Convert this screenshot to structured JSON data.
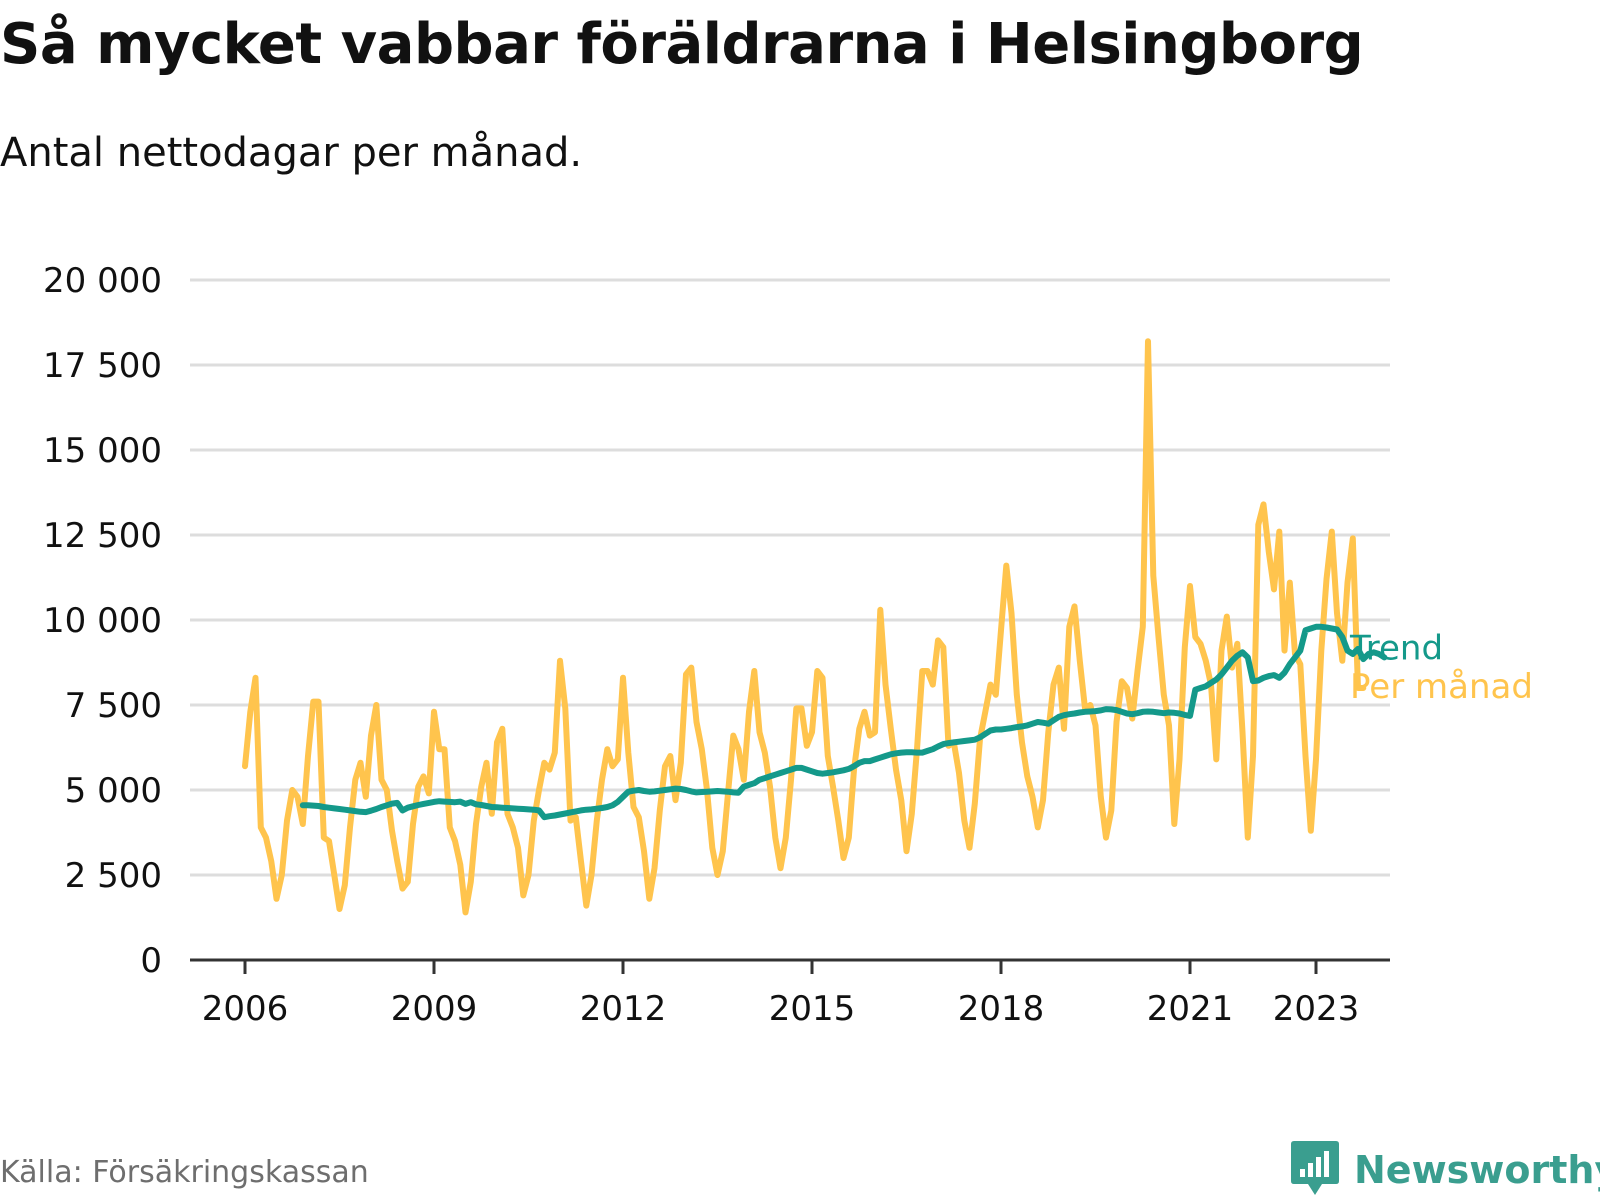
{
  "header": {
    "title": "Så mycket vabbar föräldrarna i Helsingborg",
    "subtitle": "Antal nettodagar per månad."
  },
  "footer": {
    "source": "Källa: Försäkringskassan",
    "brand": "Newsworthy"
  },
  "colors": {
    "monthly": "#ffc44d",
    "trend": "#14998a",
    "grid": "#dddddd",
    "axis": "#333333",
    "text": "#111111",
    "source": "#6e6e6e",
    "brand": "#3a9e8f"
  },
  "icons": {
    "brand": "bar-chart-speech-bubble-icon"
  },
  "chart_data": {
    "type": "line",
    "title": "Så mycket vabbar föräldrarna i Helsingborg",
    "subtitle": "Antal nettodagar per månad.",
    "xlabel": "",
    "ylabel": "",
    "ylim": [
      0,
      20000
    ],
    "yticks": [
      0,
      2500,
      5000,
      7500,
      10000,
      12500,
      15000,
      17500,
      20000
    ],
    "ytick_labels": [
      "0",
      "2 500",
      "5 000",
      "7 500",
      "10 000",
      "12 500",
      "15 000",
      "17 500",
      "20 000"
    ],
    "xticks": [
      "2006",
      "2009",
      "2012",
      "2015",
      "2018",
      "2021",
      "2023"
    ],
    "grid": "horizontal",
    "legend": "direct labels at line ends, right",
    "series": [
      {
        "name": "Per månad",
        "values": [
          5700,
          7300,
          8300,
          3900,
          3600,
          2900,
          1800,
          2500,
          4100,
          5000,
          4800,
          4000,
          6000,
          7600,
          7600,
          3600,
          3500,
          2500,
          1500,
          2200,
          3900,
          5300,
          5800,
          4800,
          6600,
          7500,
          5300,
          5000,
          3800,
          2900,
          2100,
          2300,
          4000,
          5100,
          5400,
          4900,
          7300,
          6200,
          6200,
          3900,
          3500,
          2800,
          1400,
          2300,
          4000,
          5100,
          5800,
          4300,
          6400,
          6800,
          4300,
          3900,
          3300,
          1900,
          2500,
          4100,
          5000,
          5800,
          5600,
          6100,
          8800,
          7400,
          4100,
          4200,
          2900,
          1600,
          2500,
          4100,
          5300,
          6200,
          5700,
          5900,
          8300,
          6100,
          4500,
          4200,
          3200,
          1800,
          2700,
          4400,
          5700,
          6000,
          4700,
          5800,
          8400,
          8600,
          7000,
          6200,
          5000,
          3300,
          2500,
          3200,
          4900,
          6600,
          6200,
          5300,
          7300,
          8500,
          6700,
          6100,
          5100,
          3600,
          2700,
          3600,
          5300,
          7400,
          7400,
          6300,
          6700,
          8500,
          8300,
          6000,
          5100,
          4100,
          3000,
          3600,
          5600,
          6800,
          7300,
          6600,
          6700,
          10300,
          8100,
          6800,
          5600,
          4700,
          3200,
          4300,
          6200,
          8500,
          8500,
          8100,
          9400,
          9200,
          6300,
          6400,
          5500,
          4100,
          3300,
          4600,
          6500,
          7300,
          8100,
          7800,
          9700,
          11600,
          10200,
          7800,
          6400,
          5400,
          4800,
          3900,
          4700,
          6700,
          8100,
          8600,
          6800,
          9800,
          10400,
          8800,
          7400,
          7500,
          6900,
          4800,
          3600,
          4400,
          7000,
          8200,
          8000,
          7100,
          8500,
          9800,
          18200,
          11300,
          9500,
          7800,
          6900,
          4000,
          5900,
          9200,
          11000,
          9500,
          9300,
          8800,
          8100,
          5900,
          9100,
          10100,
          8600,
          9300,
          6700,
          3600,
          6000,
          12800,
          13400,
          12000,
          10900,
          12600,
          9100,
          11100,
          9000,
          8700,
          6000,
          3800,
          5900,
          9100,
          11200,
          12600,
          10200,
          8800,
          11100,
          12400,
          8000,
          8000
        ],
        "color": "#ffc44d"
      },
      {
        "name": "Trend",
        "values": [
          4550,
          4550,
          4540,
          4530,
          4500,
          4480,
          4460,
          4440,
          4420,
          4400,
          4380,
          4360,
          4350,
          4390,
          4440,
          4500,
          4550,
          4600,
          4620,
          4400,
          4480,
          4520,
          4560,
          4590,
          4620,
          4650,
          4670,
          4660,
          4650,
          4640,
          4660,
          4590,
          4640,
          4580,
          4560,
          4530,
          4500,
          4490,
          4480,
          4470,
          4460,
          4450,
          4440,
          4430,
          4420,
          4400,
          4200,
          4230,
          4250,
          4280,
          4310,
          4340,
          4370,
          4400,
          4420,
          4430,
          4450,
          4470,
          4500,
          4550,
          4650,
          4800,
          4950,
          4980,
          5000,
          4970,
          4950,
          4960,
          4980,
          5000,
          5020,
          5040,
          5030,
          5000,
          4960,
          4930,
          4940,
          4950,
          4960,
          4970,
          4960,
          4950,
          4930,
          4920,
          5100,
          5150,
          5200,
          5300,
          5350,
          5400,
          5450,
          5500,
          5550,
          5600,
          5650,
          5650,
          5600,
          5550,
          5500,
          5480,
          5500,
          5520,
          5550,
          5580,
          5620,
          5700,
          5800,
          5850,
          5850,
          5900,
          5950,
          6000,
          6050,
          6080,
          6100,
          6110,
          6110,
          6100,
          6100,
          6150,
          6200,
          6280,
          6350,
          6380,
          6400,
          6420,
          6440,
          6460,
          6480,
          6550,
          6650,
          6750,
          6780,
          6780,
          6800,
          6820,
          6850,
          6870,
          6900,
          6950,
          7000,
          6980,
          6950,
          7050,
          7150,
          7200,
          7230,
          7250,
          7280,
          7300,
          7310,
          7320,
          7340,
          7380,
          7370,
          7350,
          7300,
          7250,
          7230,
          7260,
          7300,
          7310,
          7300,
          7280,
          7260,
          7280,
          7270,
          7250,
          7210,
          7180,
          7950,
          8000,
          8050,
          8150,
          8250,
          8400,
          8600,
          8800,
          8950,
          9050,
          8900,
          8200,
          8220,
          8300,
          8350,
          8380,
          8300,
          8450,
          8700,
          8900,
          9100,
          9700,
          9750,
          9800,
          9800,
          9780,
          9750,
          9720,
          9500,
          9100,
          9000,
          9150,
          8850,
          9000,
          9050,
          9000,
          8900
        ],
        "color": "#14998a"
      }
    ]
  }
}
